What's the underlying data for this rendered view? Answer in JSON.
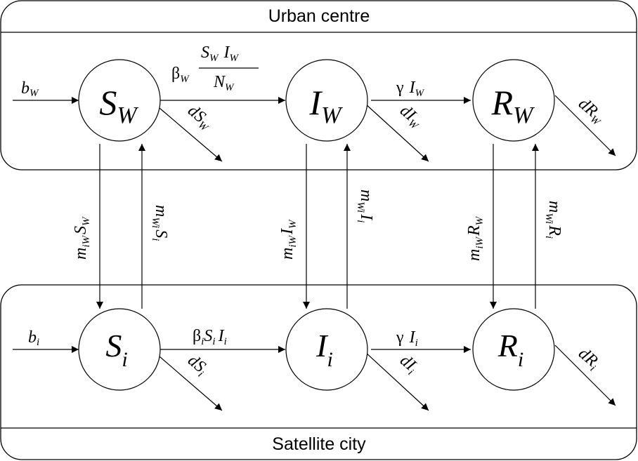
{
  "regions": {
    "top_title": "Urban centre",
    "bottom_title": "Satellite city"
  },
  "nodes": {
    "S_W": {
      "main": "S",
      "sub": "W"
    },
    "I_W": {
      "main": "I",
      "sub": "W"
    },
    "R_W": {
      "main": "R",
      "sub": "W"
    },
    "S_i": {
      "main": "S",
      "sub": "i"
    },
    "I_i": {
      "main": "I",
      "sub": "i"
    },
    "R_i": {
      "main": "R",
      "sub": "i"
    }
  },
  "labels": {
    "birth_W": {
      "main": "b",
      "sub": "W"
    },
    "birth_i": {
      "main": "b",
      "sub": "i"
    },
    "beta_W": {
      "greek": "β",
      "sub": "W"
    },
    "frac_num": {
      "a": "S",
      "a_sub": "W",
      "b": "I",
      "b_sub": "W"
    },
    "frac_den": {
      "main": "N",
      "sub": "W"
    },
    "gamma_W": {
      "greek": "γ",
      "var": "I",
      "sub": "W"
    },
    "beta_i": {
      "greek": "β",
      "s1": "i",
      "a": "S",
      "s2": "i",
      "b": "I",
      "s3": "i"
    },
    "gamma_i": {
      "greek": "γ",
      "var": "I",
      "sub": "i"
    },
    "death_SW": {
      "d": "d",
      "main": "S",
      "sub": "W"
    },
    "death_IW": {
      "d": "d",
      "main": "I",
      "sub": "W"
    },
    "death_RW": {
      "d": "d",
      "main": "R",
      "sub": "W"
    },
    "death_Si": {
      "d": "d",
      "main": "S",
      "sub": "i"
    },
    "death_Ii": {
      "d": "d",
      "main": "I",
      "sub": "i"
    },
    "death_Ri": {
      "d": "d",
      "main": "R",
      "sub": "i"
    },
    "mig_down_S": {
      "m": "m",
      "msub": "iW",
      "main": "S",
      "sub": "W"
    },
    "mig_down_I": {
      "m": "m",
      "msub": "iW",
      "main": "I",
      "sub": "W"
    },
    "mig_down_R": {
      "m": "m",
      "msub": "iW",
      "main": "R",
      "sub": "W"
    },
    "mig_up_S": {
      "m": "m",
      "msub": "Wi",
      "main": "S",
      "sub": "i"
    },
    "mig_up_I": {
      "m": "m",
      "msub": "Wi",
      "main": "I",
      "sub": "i"
    },
    "mig_up_R": {
      "m": "m",
      "msub": "Wi",
      "main": "R",
      "sub": "i"
    }
  }
}
